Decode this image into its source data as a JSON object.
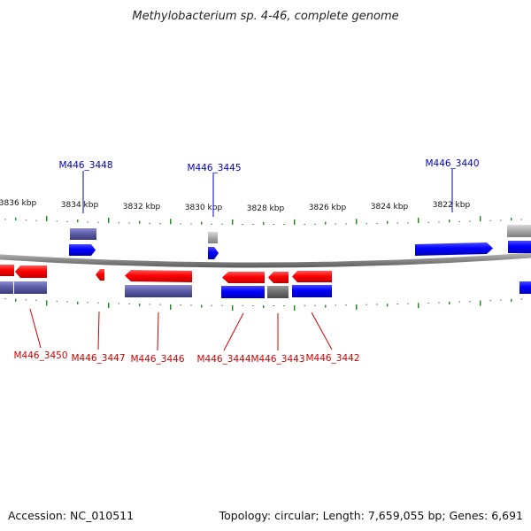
{
  "title": "Methylobacterium sp. 4-46, complete genome",
  "footer": {
    "accession": "Accession: NC_010511",
    "summary": "Topology: circular; Length: 7,659,055 bp; Genes: 6,691"
  },
  "colors": {
    "forward_gene": "#0000ff",
    "reverse_gene": "#ff0000",
    "protein_forward": "#5a5aa5",
    "protein_reverse": "#4a4a8a",
    "pseudo": "#a8a8a8",
    "rna_gray": "#707070",
    "tick": "#1f8a1f",
    "backbone": "#8c8c8c",
    "label_forward": "#0000c0",
    "label_reverse": "#d00000"
  },
  "ruler": {
    "labels": [
      "3836 kbp",
      "3834 kbp",
      "3832 kbp",
      "3830 kbp",
      "3828 kbp",
      "3826 kbp",
      "3824 kbp",
      "3822 kbp"
    ]
  },
  "genes": {
    "forward": [
      "M446_3448",
      "M446_3445",
      "M446_3440"
    ],
    "reverse": [
      "M446_3450",
      "M446_3447",
      "M446_3446",
      "M446_3444",
      "M446_3443",
      "M446_3442"
    ]
  }
}
